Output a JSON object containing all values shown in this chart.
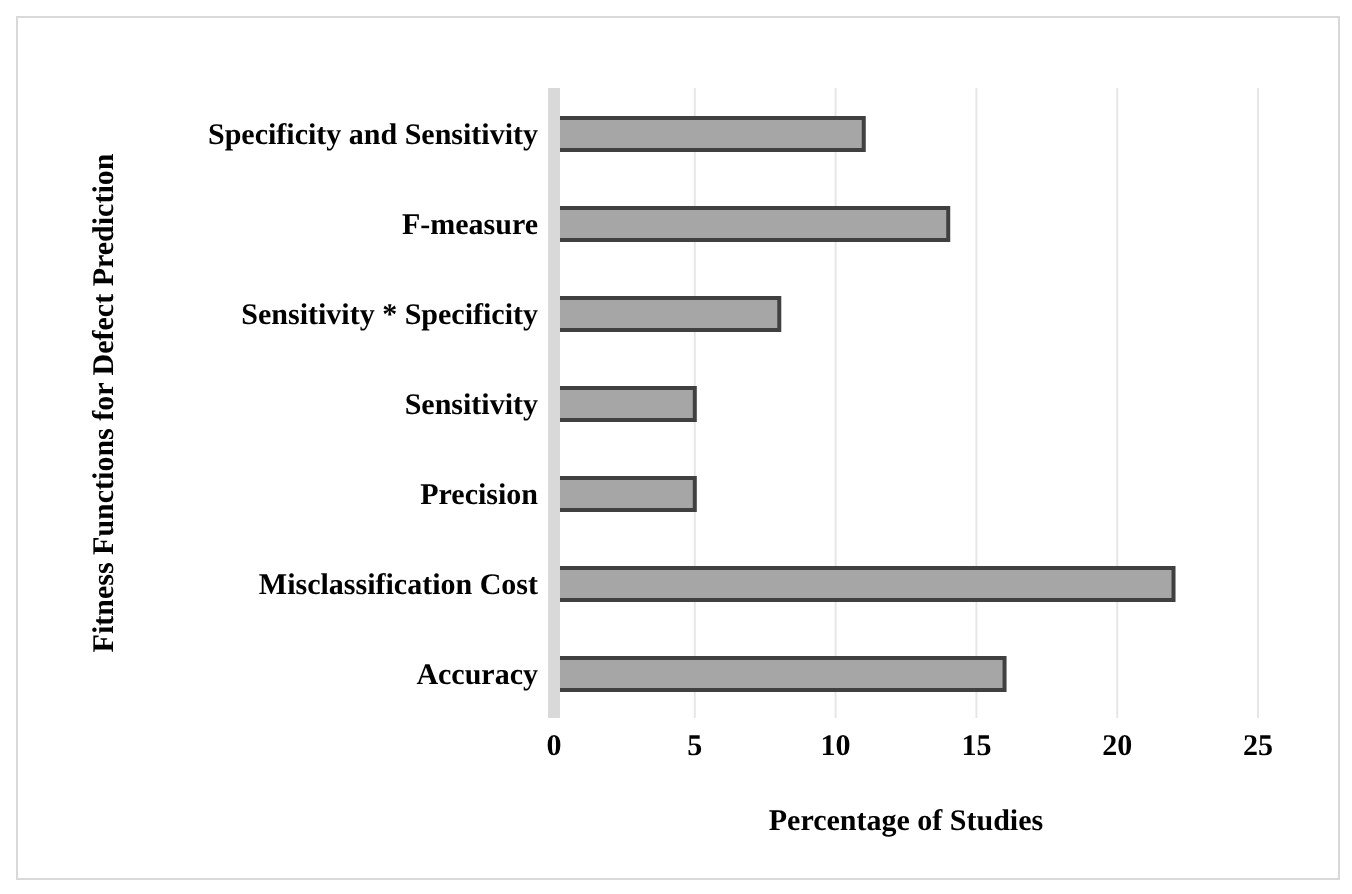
{
  "chart_data": {
    "type": "bar",
    "orientation": "horizontal",
    "xlabel": "Percentage of Studies",
    "ylabel": "Fitness Functions for Defect Prediction",
    "categories": [
      "Specificity and Sensitivity",
      "F-measure",
      "Sensitivity * Specificity",
      "Sensitivity",
      "Precision",
      "Misclassification Cost",
      "Accuracy"
    ],
    "values": [
      11,
      14,
      8,
      5,
      5,
      22,
      16
    ],
    "color": "#a6a6a6",
    "xlim": [
      0,
      25
    ],
    "xticks": [
      0,
      5,
      10,
      15,
      20,
      25
    ],
    "grid": "x"
  }
}
